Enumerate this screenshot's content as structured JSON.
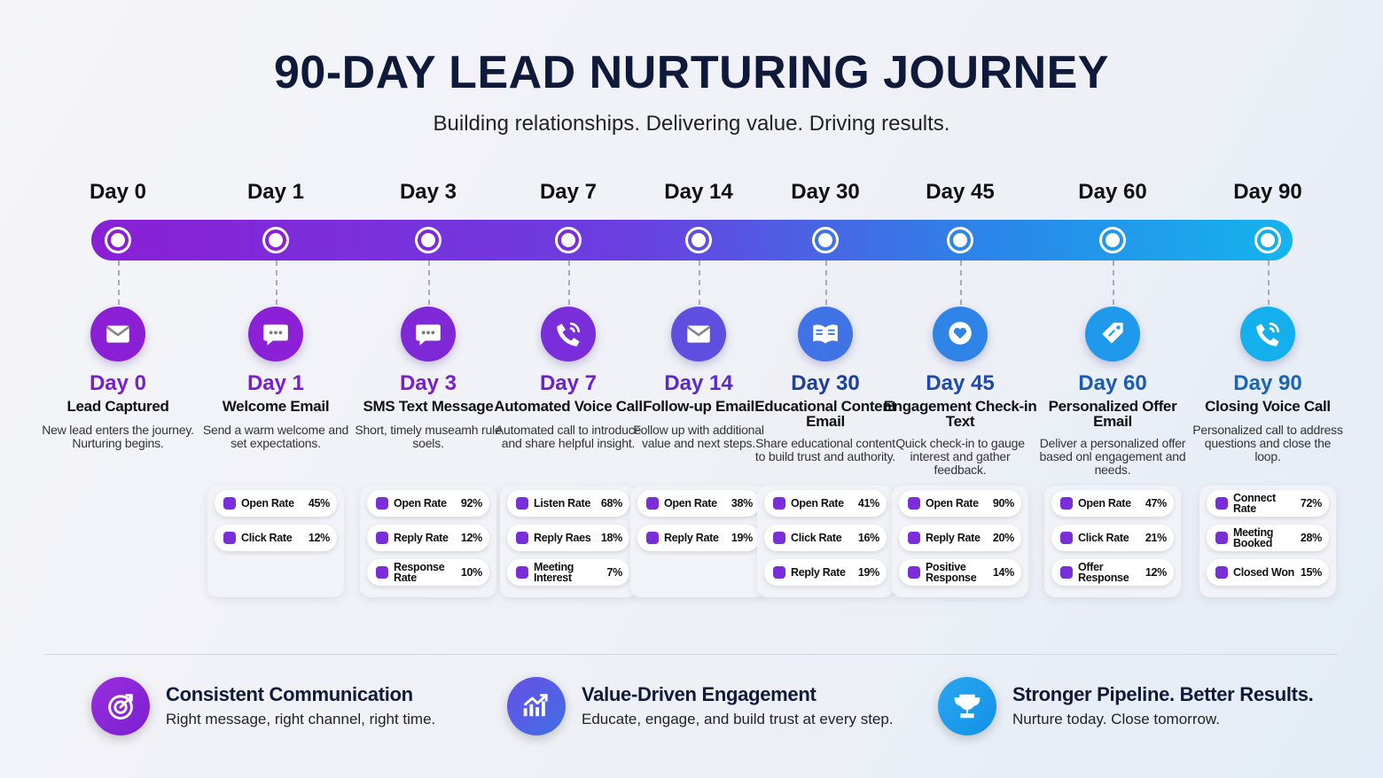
{
  "header": {
    "title": "90-DAY LEAD NURTURING JOURNEY",
    "subtitle": "Building relationships. Delivering value. Driving results."
  },
  "stages": [
    {
      "day": "Day 0",
      "title": "Lead Captured",
      "description": "New lead enters the journey. Nurturing begins.",
      "metrics": []
    },
    {
      "day": "Day 1",
      "title": "Welcome Email",
      "description": "Send a warm welcome and set expectations.",
      "metrics": [
        {
          "label": "Open Rate",
          "value": "45%"
        },
        {
          "label": "Click Rate",
          "value": "12%"
        }
      ]
    },
    {
      "day": "Day 3",
      "title": "SMS Text Message",
      "description": "Short, timely museamh rule soels.",
      "metrics": [
        {
          "label": "Open Rate",
          "value": "92%"
        },
        {
          "label": "Reply Rate",
          "value": "12%"
        },
        {
          "label": "Response Rate",
          "value": "10%"
        }
      ]
    },
    {
      "day": "Day 7",
      "title": "Automated Voice Call",
      "description": "Automated call to introduce and share helpful insight.",
      "metrics": [
        {
          "label": "Listen Rate",
          "value": "68%"
        },
        {
          "label": "Reply Raes",
          "value": "18%"
        },
        {
          "label": "Meeting Interest",
          "value": "7%"
        }
      ]
    },
    {
      "day": "Day 14",
      "title": "Follow-up Email",
      "description": "Follow up with additional value and next steps.",
      "metrics": [
        {
          "label": "Open Rate",
          "value": "38%"
        },
        {
          "label": "Reply Rate",
          "value": "19%"
        }
      ]
    },
    {
      "day": "Day 30",
      "title": "Educational Content Email",
      "description": "Share educational content to build trust and authority.",
      "metrics": [
        {
          "label": "Open Rate",
          "value": "41%"
        },
        {
          "label": "Click Rate",
          "value": "16%"
        },
        {
          "label": "Reply Rate",
          "value": "19%"
        }
      ]
    },
    {
      "day": "Day 45",
      "title": "Engagement Check-in Text",
      "description": "Quick check-in to gauge interest and gather feedback.",
      "metrics": [
        {
          "label": "Open Rate",
          "value": "90%"
        },
        {
          "label": "Reply Rate",
          "value": "20%"
        },
        {
          "label": "Positive Response",
          "value": "14%"
        }
      ]
    },
    {
      "day": "Day 60",
      "title": "Personalized Offer Email",
      "description": "Deliver a personalized offer based onl engagement and needs.",
      "metrics": [
        {
          "label": "Open Rate",
          "value": "47%"
        },
        {
          "label": "Click Rate",
          "value": "21%"
        },
        {
          "label": "Offer Response",
          "value": "12%"
        }
      ]
    },
    {
      "day": "Day 90",
      "title": "Closing Voice Call",
      "description": "Personalized call to address questions and close the loop.",
      "metrics": [
        {
          "label": "Connect Rate",
          "value": "72%"
        },
        {
          "label": "Meeting Booked",
          "value": "28%"
        },
        {
          "label": "Closed Won",
          "value": "15%"
        }
      ]
    }
  ],
  "footer": [
    {
      "title": "Consistent Communication",
      "text": "Right message, right channel, right time."
    },
    {
      "title": "Value-Driven Engagement",
      "text": "Educate, engage, and build trust at every step."
    },
    {
      "title": "Stronger Pipeline. Better Results.",
      "text": "Nurture today. Close tomorrow."
    }
  ]
}
